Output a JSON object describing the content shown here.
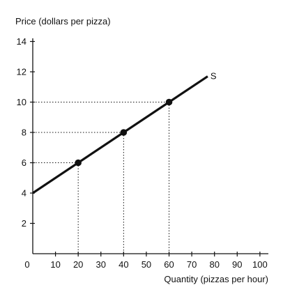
{
  "chart_data": {
    "type": "line",
    "ylabel": "Price (dollars per pizza)",
    "xlabel": "Quantity (pizzas per hour)",
    "xlim": [
      0,
      100
    ],
    "ylim": [
      0,
      15
    ],
    "x_ticks": [
      0,
      10,
      20,
      30,
      40,
      50,
      60,
      70,
      80,
      90,
      100
    ],
    "y_ticks": [
      2,
      4,
      6,
      8,
      10,
      12,
      14
    ],
    "grid": false,
    "series": [
      {
        "name": "S",
        "line": [
          [
            0,
            4
          ],
          [
            77,
            11.7
          ]
        ],
        "points": [
          [
            20,
            6
          ],
          [
            40,
            8
          ],
          [
            60,
            10
          ]
        ]
      }
    ],
    "guide_lines": [
      {
        "x": 20,
        "y": 6
      },
      {
        "x": 40,
        "y": 8
      },
      {
        "x": 60,
        "y": 10
      }
    ],
    "colors": {
      "line": "#111111",
      "guide": "#111111"
    }
  }
}
